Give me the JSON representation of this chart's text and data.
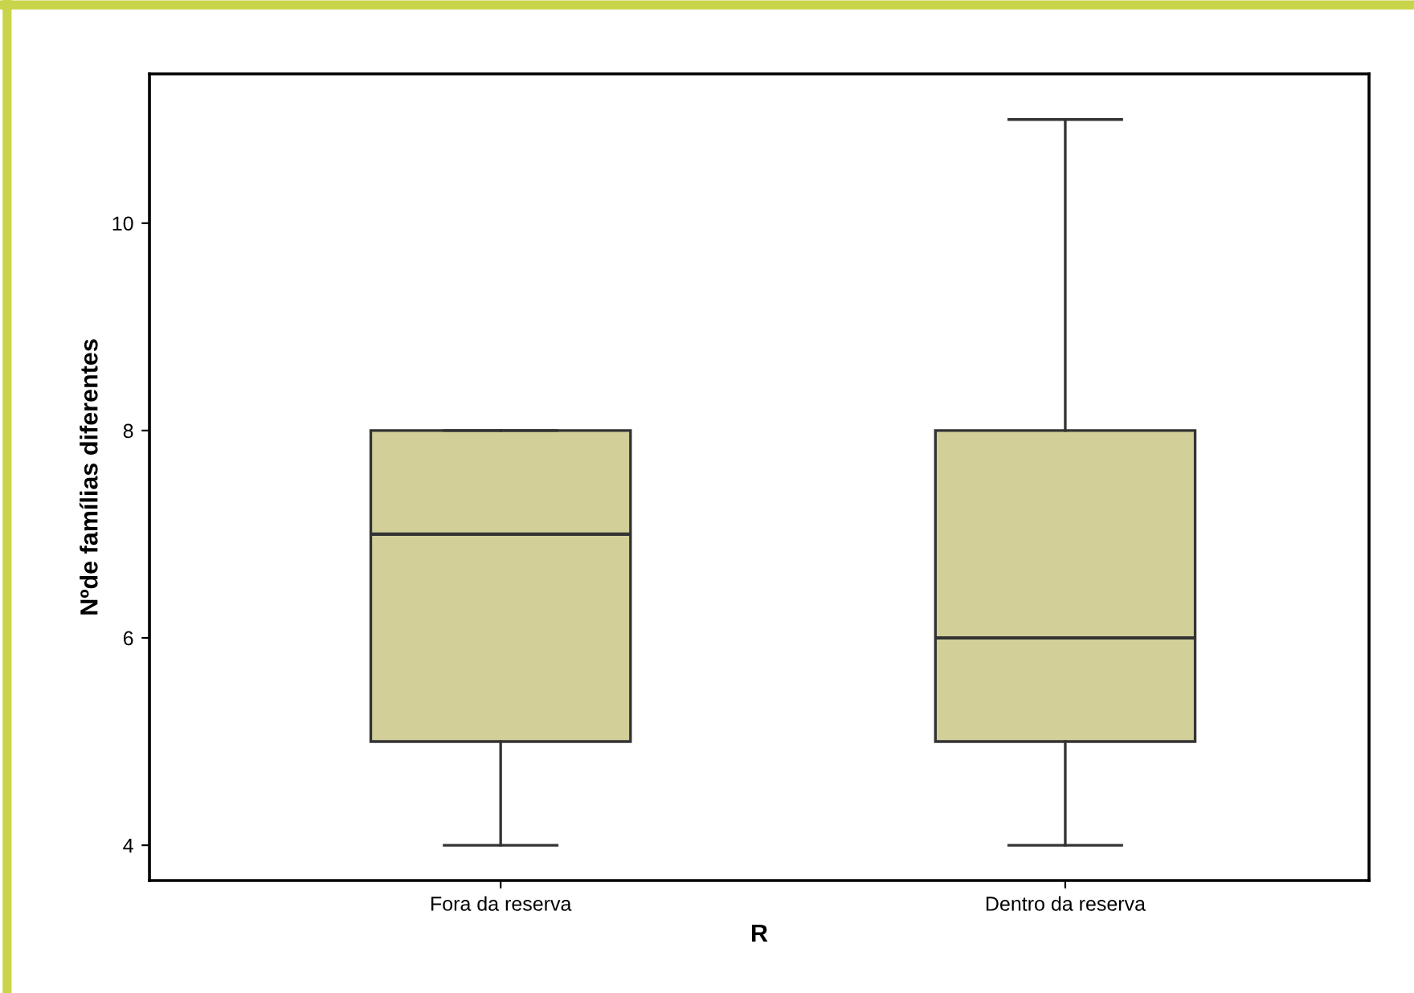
{
  "chart_data": {
    "type": "box",
    "xlabel": "R",
    "ylabel": "Nºde famílias diferentes",
    "categories": [
      "Fora da reserva",
      "Dentro da reserva"
    ],
    "boxes": [
      {
        "low": 4,
        "q1": 5,
        "median": 7,
        "q3": 8,
        "high": 8
      },
      {
        "low": 4,
        "q1": 5,
        "median": 6,
        "q3": 8,
        "high": 11
      }
    ],
    "color": "#d3cf99",
    "ylim": [
      3.66,
      11.44
    ],
    "yticks": [
      4,
      6,
      8,
      10
    ],
    "grid": false
  }
}
